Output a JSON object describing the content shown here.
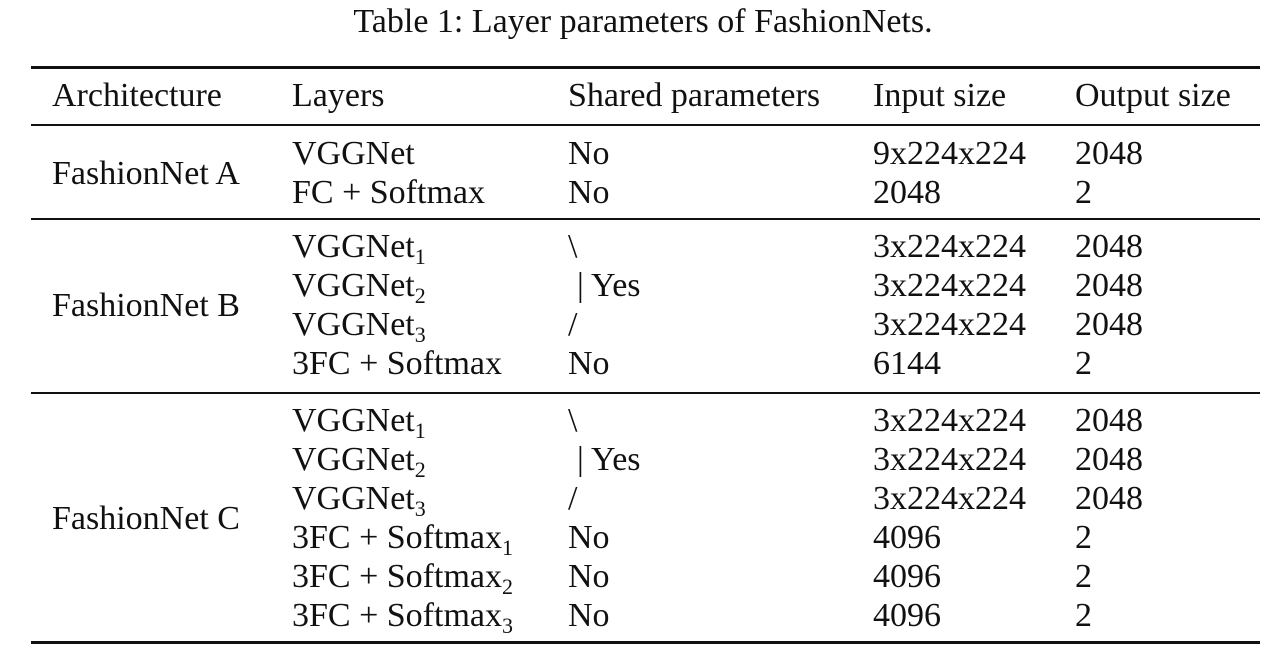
{
  "caption": "Table 1: Layer parameters of FashionNets.",
  "headers": [
    "Architecture",
    "Layers",
    "Shared parameters",
    "Input size",
    "Output size"
  ],
  "groups": [
    {
      "architecture": "FashionNet A",
      "rows": [
        {
          "layer": "VGGNet",
          "sub": "",
          "shared": "No",
          "input": "9x224x224",
          "output": "2048"
        },
        {
          "layer": "FC + Softmax",
          "sub": "",
          "shared": "No",
          "input": "2048",
          "output": "2"
        }
      ]
    },
    {
      "architecture": "FashionNet B",
      "rows": [
        {
          "layer": "VGGNet",
          "sub": "1",
          "shared": "\\",
          "input": "3x224x224",
          "output": "2048"
        },
        {
          "layer": "VGGNet",
          "sub": "2",
          "shared": "| Yes",
          "input": "3x224x224",
          "output": "2048"
        },
        {
          "layer": "VGGNet",
          "sub": "3",
          "shared": "/",
          "input": "3x224x224",
          "output": "2048"
        },
        {
          "layer": "3FC + Softmax",
          "sub": "",
          "shared": "No",
          "input": "6144",
          "output": "2"
        }
      ]
    },
    {
      "architecture": "FashionNet C",
      "rows": [
        {
          "layer": "VGGNet",
          "sub": "1",
          "shared": "\\",
          "input": "3x224x224",
          "output": "2048"
        },
        {
          "layer": "VGGNet",
          "sub": "2",
          "shared": "| Yes",
          "input": "3x224x224",
          "output": "2048"
        },
        {
          "layer": "VGGNet",
          "sub": "3",
          "shared": "/",
          "input": "3x224x224",
          "output": "2048"
        },
        {
          "layer": "3FC + Softmax",
          "sub": "1",
          "shared": "No",
          "input": "4096",
          "output": "2"
        },
        {
          "layer": "3FC + Softmax",
          "sub": "2",
          "shared": "No",
          "input": "4096",
          "output": "2"
        },
        {
          "layer": "3FC + Softmax",
          "sub": "3",
          "shared": "No",
          "input": "4096",
          "output": "2"
        }
      ]
    }
  ]
}
